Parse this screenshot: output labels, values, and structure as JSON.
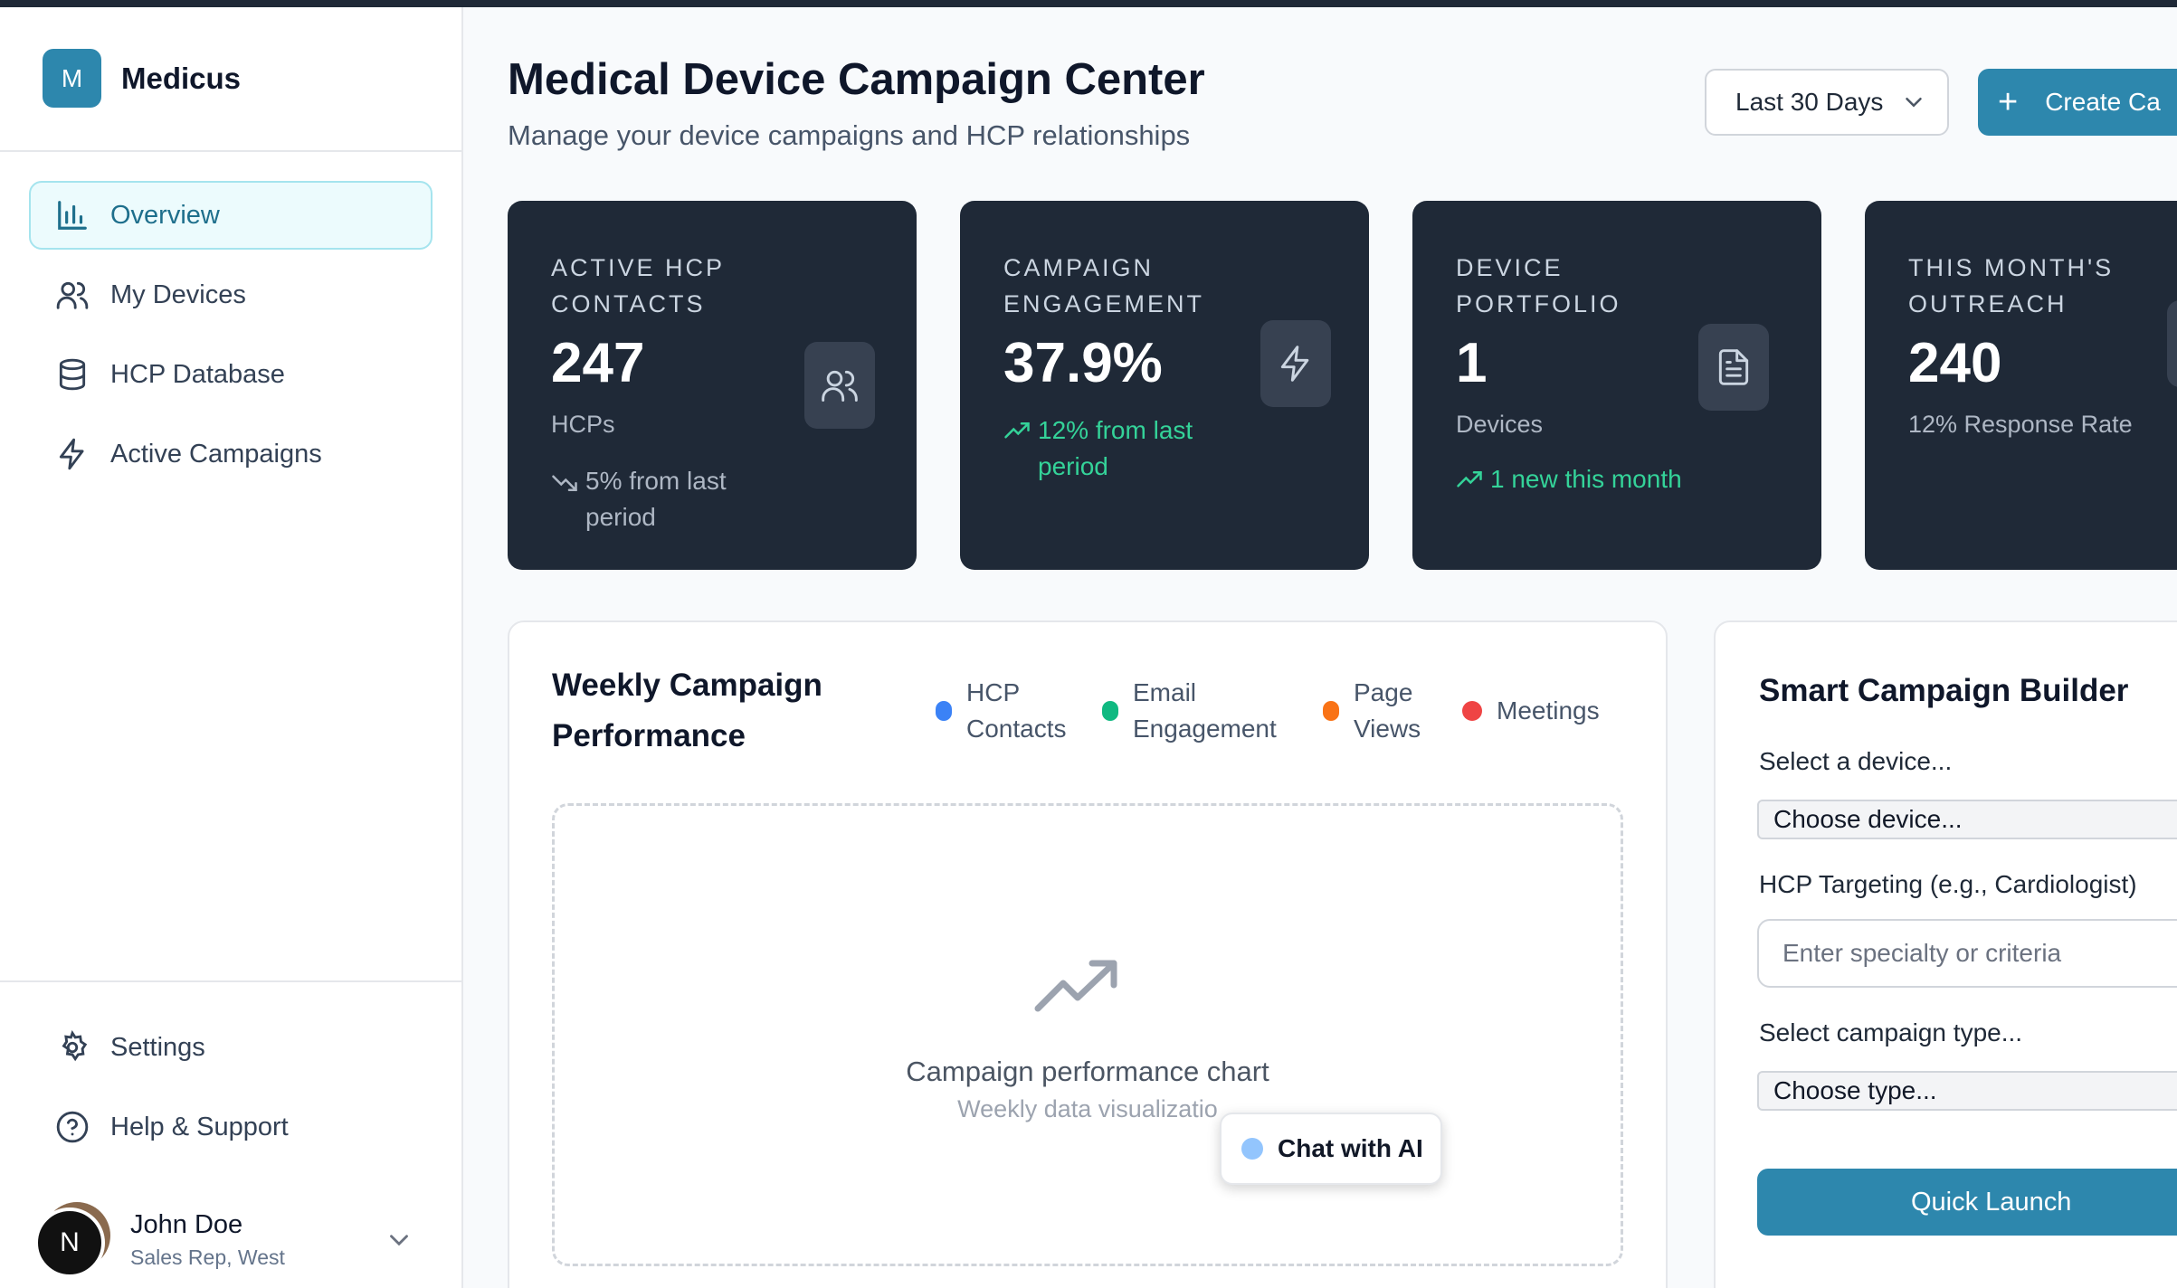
{
  "brand": {
    "logo_letter": "M",
    "name": "Medicus",
    "color": "#2d87ad"
  },
  "sidebar": {
    "items": [
      {
        "label": "Overview",
        "icon": "bar-chart-icon",
        "active": true
      },
      {
        "label": "My Devices",
        "icon": "users-icon",
        "active": false
      },
      {
        "label": "HCP Database",
        "icon": "database-icon",
        "active": false
      },
      {
        "label": "Active Campaigns",
        "icon": "zap-icon",
        "active": false
      }
    ],
    "bottom_items": [
      {
        "label": "Settings",
        "icon": "gear-icon"
      },
      {
        "label": "Help & Support",
        "icon": "help-circle-icon"
      }
    ],
    "user": {
      "initial": "N",
      "name": "John Doe",
      "role": "Sales Rep, West"
    }
  },
  "header": {
    "title": "Medical Device Campaign Center",
    "subtitle": "Manage your device campaigns and HCP relationships",
    "date_range": "Last 30 Days",
    "create_button": "Create Ca"
  },
  "stats": [
    {
      "label": "ACTIVE HCP CONTACTS",
      "value": "247",
      "unit": "HCPs",
      "trend": "5% from last period",
      "trend_direction": "down",
      "icon": "users-icon"
    },
    {
      "label": "CAMPAIGN ENGAGEMENT",
      "value": "37.9%",
      "unit": "",
      "trend": "12% from last period",
      "trend_direction": "up",
      "icon": "zap-icon"
    },
    {
      "label": "DEVICE PORTFOLIO",
      "value": "1",
      "unit": "Devices",
      "trend": "1 new this month",
      "trend_direction": "up",
      "icon": "document-icon"
    },
    {
      "label": "THIS MONTH'S OUTREACH",
      "value": "240",
      "unit": "12% Response Rate",
      "trend": "",
      "trend_direction": "",
      "icon": ""
    }
  ],
  "performance": {
    "title": "Weekly Campaign Performance",
    "legend": [
      {
        "label": "HCP Contacts",
        "color": "#3b82f6"
      },
      {
        "label": "Email Engagement",
        "color": "#10b981"
      },
      {
        "label": "Page Views",
        "color": "#f97316"
      },
      {
        "label": "Meetings",
        "color": "#ef4444"
      }
    ],
    "chart_placeholder_title": "Campaign performance chart",
    "chart_placeholder_sub": "Weekly data visualizatio"
  },
  "chat": {
    "label": "Chat with AI"
  },
  "builder": {
    "title": "Smart Campaign Builder",
    "device_label": "Select a device...",
    "device_value": "Choose device...",
    "targeting_label": "HCP Targeting (e.g., Cardiologist)",
    "targeting_placeholder": "Enter specialty or criteria",
    "type_label": "Select campaign type...",
    "type_value": "Choose type...",
    "launch_button": "Quick Launch"
  }
}
